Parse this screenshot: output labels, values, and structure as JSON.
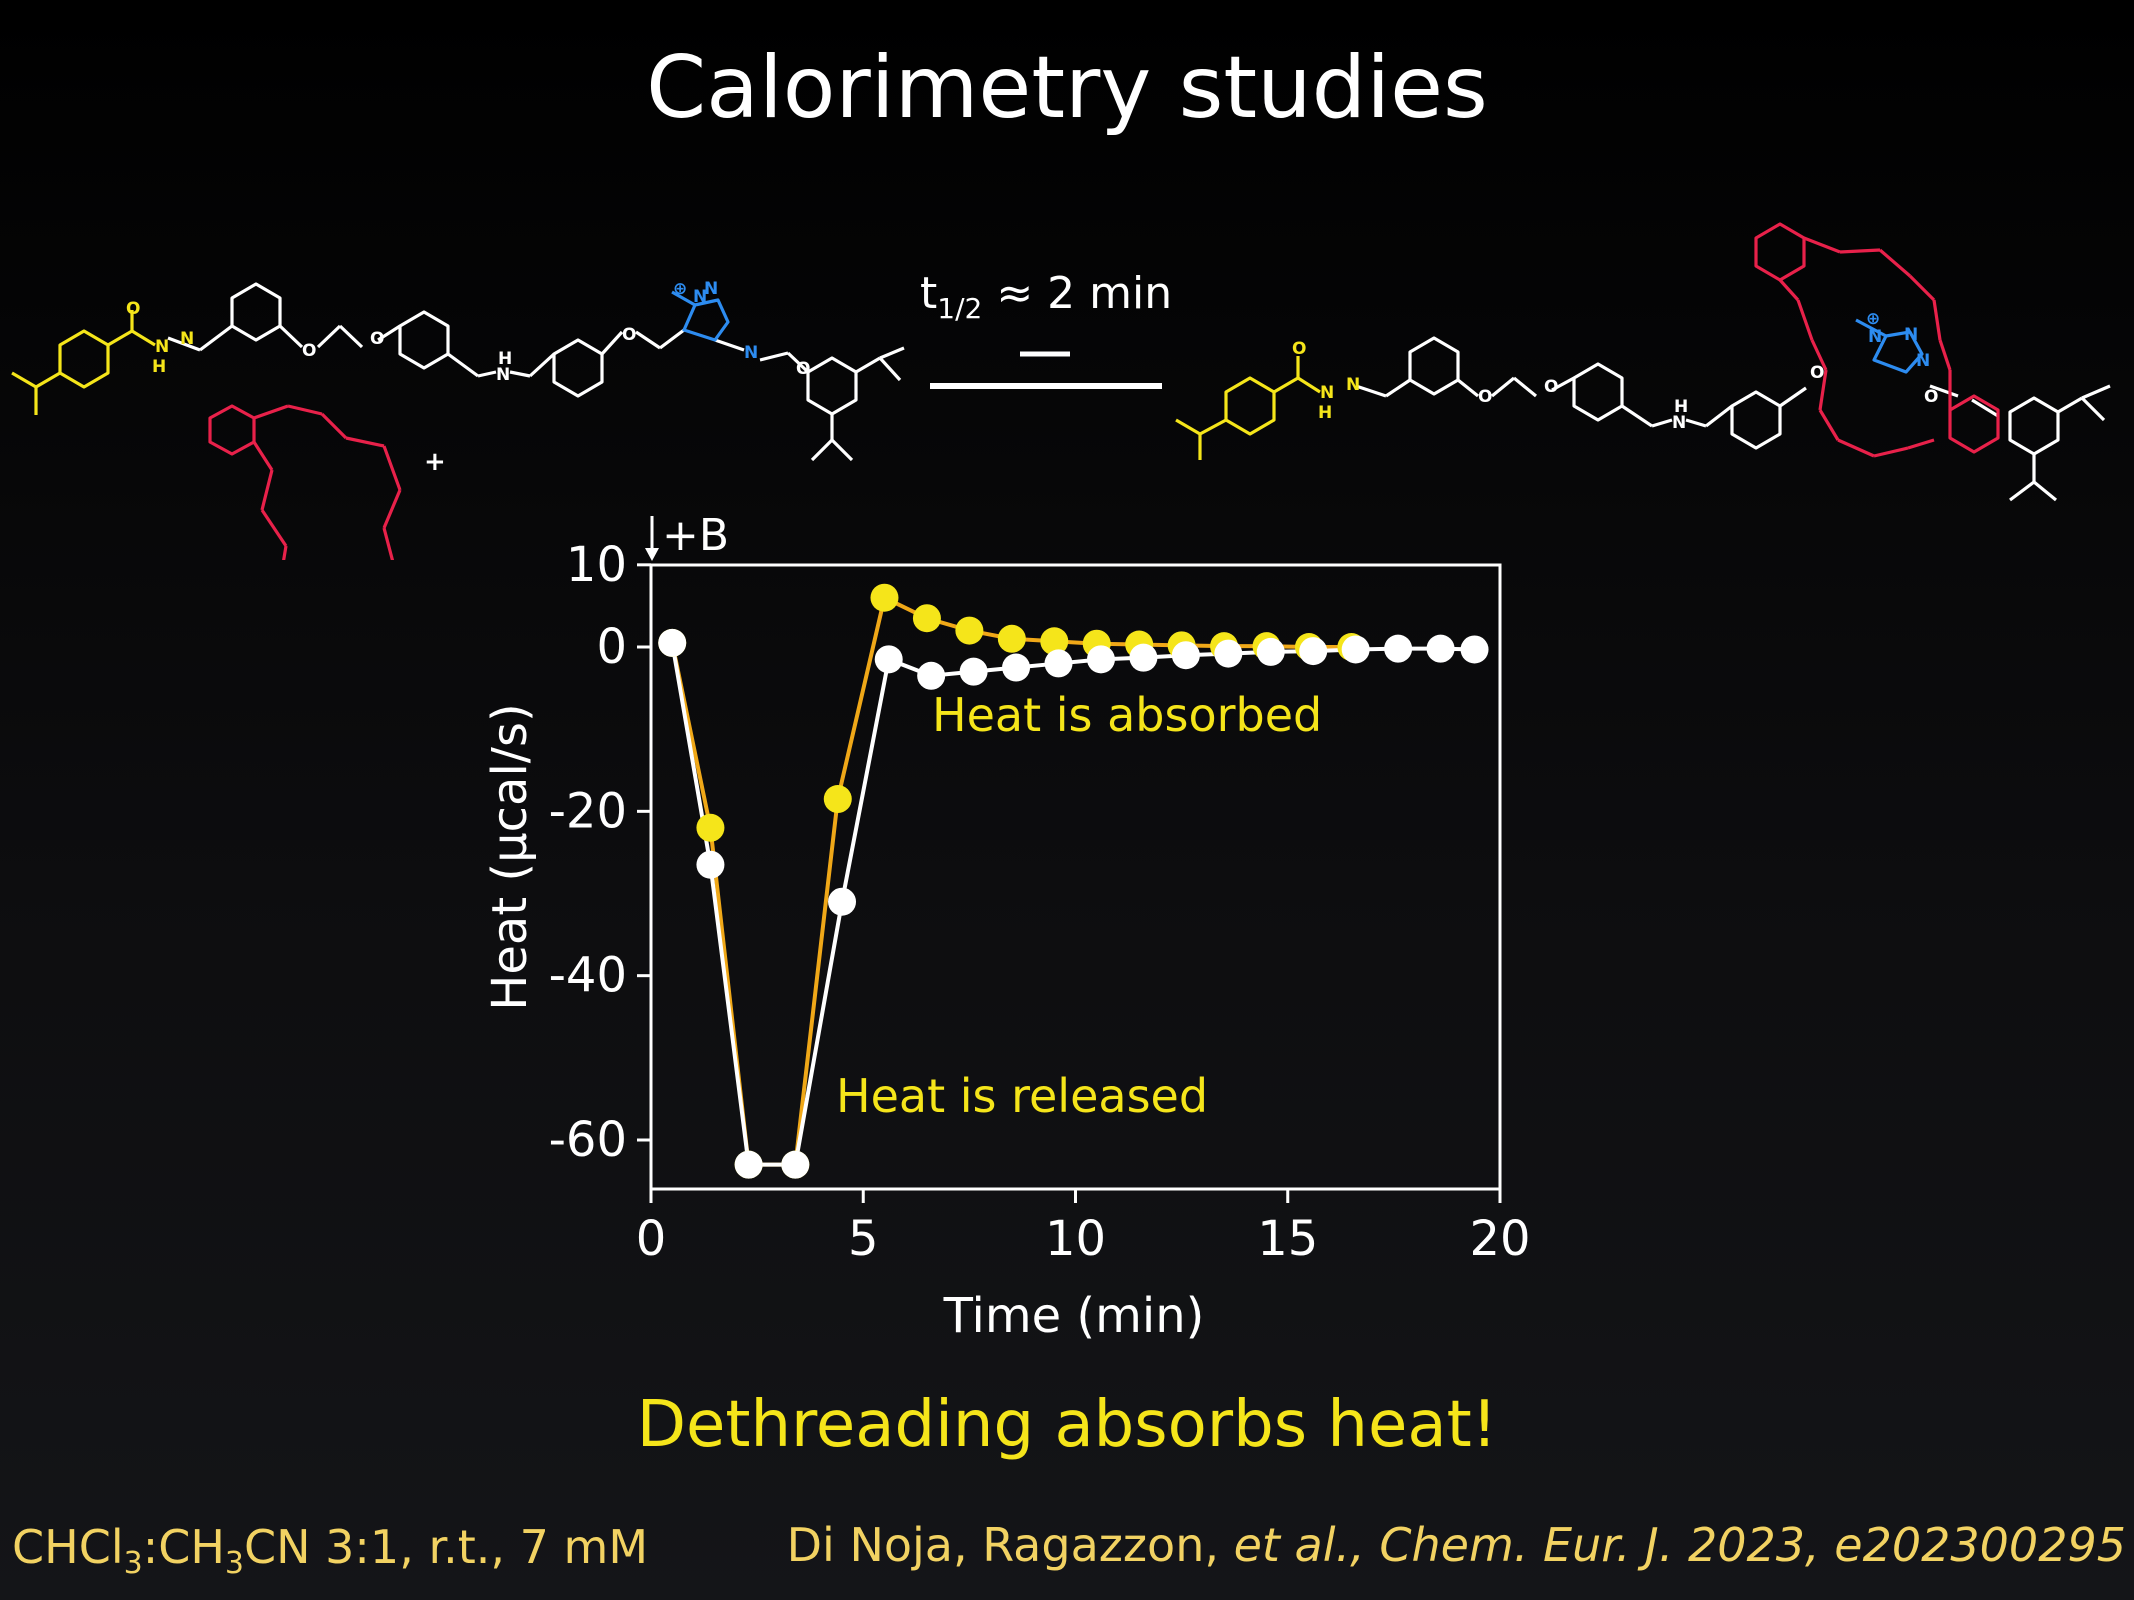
{
  "slide": {
    "title": "Calorimetry studies",
    "conclusion": "Dethreading absorbs heat!",
    "conditions": {
      "part1": "CHCl",
      "sub1": "3",
      "part2": ":CH",
      "sub2": "3",
      "part3": "CN 3:1, r.t., 7 mM"
    },
    "citation": {
      "authors": "Di Noja, Ragazzon, ",
      "etal": "et al., Chem. Eur. J. 2023, e202300295"
    },
    "equilibrium": {
      "t_label": "t",
      "t_sub": "1/2",
      "t_rest": " ≈ 2 min"
    }
  },
  "scheme": {
    "atom_labels": {
      "O": "O",
      "N": "N",
      "NH": "H",
      "plus": "+",
      "charge": "⊕"
    }
  },
  "chart_data": {
    "type": "line",
    "xlabel": "Time (min)",
    "ylabel": "Heat (μcal/s)",
    "xlim": [
      0,
      20
    ],
    "ylim": [
      -65,
      10
    ],
    "xticks": [
      0,
      5,
      10,
      15,
      20
    ],
    "yticks": [
      10,
      0,
      -20,
      -40,
      -60
    ],
    "annotations": {
      "injection": "+B",
      "absorbed": "Heat is absorbed",
      "released": "Heat is released"
    },
    "series": [
      {
        "color": "#f5e51a",
        "line_color": "#f0a818",
        "x": [
          0.5,
          1.4,
          2.3,
          3.4,
          4.4,
          5.5,
          6.5,
          7.5,
          8.5,
          9.5,
          10.5,
          11.5,
          12.5,
          13.5,
          14.5,
          15.5,
          16.5
        ],
        "y": [
          0.5,
          -22,
          -63,
          -63,
          -18.5,
          6,
          3.5,
          2,
          1,
          0.7,
          0.4,
          0.3,
          0.2,
          0.1,
          0.1,
          0,
          0
        ]
      },
      {
        "color": "#ffffff",
        "line_color": "#ffffff",
        "x": [
          0.5,
          1.4,
          2.3,
          3.4,
          4.5,
          5.6,
          6.6,
          7.6,
          8.6,
          9.6,
          10.6,
          11.6,
          12.6,
          13.6,
          14.6,
          15.6,
          16.6,
          17.6,
          18.6,
          19.4
        ],
        "y": [
          0.5,
          -26.5,
          -63,
          -63,
          -31,
          -1.5,
          -3.5,
          -3,
          -2.5,
          -2,
          -1.5,
          -1.3,
          -1,
          -0.8,
          -0.6,
          -0.5,
          -0.3,
          -0.2,
          -0.2,
          -0.3
        ]
      }
    ]
  }
}
